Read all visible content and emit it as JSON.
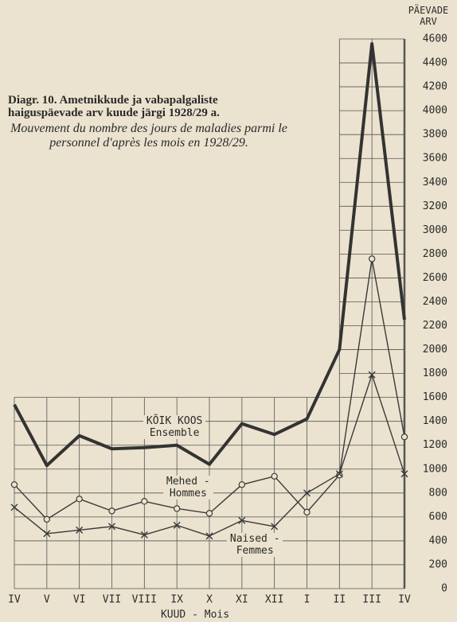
{
  "chart_data": {
    "type": "line",
    "title": "Diagr. 10. Ametnikkude ja vabapalgaliste haiguspäevade arv kuude järgi 1928/29 a.",
    "subtitle": "Mouvement du nombre des jours de maladies parmi le personnel d'après les mois en 1928/29.",
    "x_label": "KUUD - Mois",
    "y_label": "PÄEVADE ARV",
    "categories": [
      "IV",
      "V",
      "VI",
      "VII",
      "VIII",
      "IX",
      "X",
      "XI",
      "XII",
      "I",
      "II",
      "III",
      "IV"
    ],
    "series": [
      {
        "name": "KÕIK KOOS Ensemble",
        "color": "#333333",
        "marker": "none",
        "values": [
          1540,
          1030,
          1280,
          1170,
          1180,
          1200,
          1040,
          1380,
          1290,
          1420,
          2000,
          4560,
          2250
        ]
      },
      {
        "name": "Mehed - Hommes",
        "color": "#3a3a3a",
        "marker": "circle",
        "values": [
          870,
          580,
          750,
          650,
          730,
          670,
          630,
          870,
          940,
          640,
          950,
          2760,
          1270
        ]
      },
      {
        "name": "Naised - Femmes",
        "color": "#3a3a3a",
        "marker": "cross",
        "values": [
          680,
          460,
          490,
          520,
          450,
          530,
          440,
          570,
          520,
          800,
          960,
          1790,
          960
        ]
      }
    ],
    "ylim": [
      0,
      4600
    ],
    "yticks": [
      0,
      200,
      400,
      600,
      800,
      1000,
      1200,
      1400,
      1600,
      1800,
      2000,
      2200,
      2400,
      2600,
      2800,
      3000,
      3200,
      3400,
      3600,
      3800,
      4000,
      4200,
      4400,
      4600
    ],
    "grid": true,
    "y_axis_side": "right"
  }
}
